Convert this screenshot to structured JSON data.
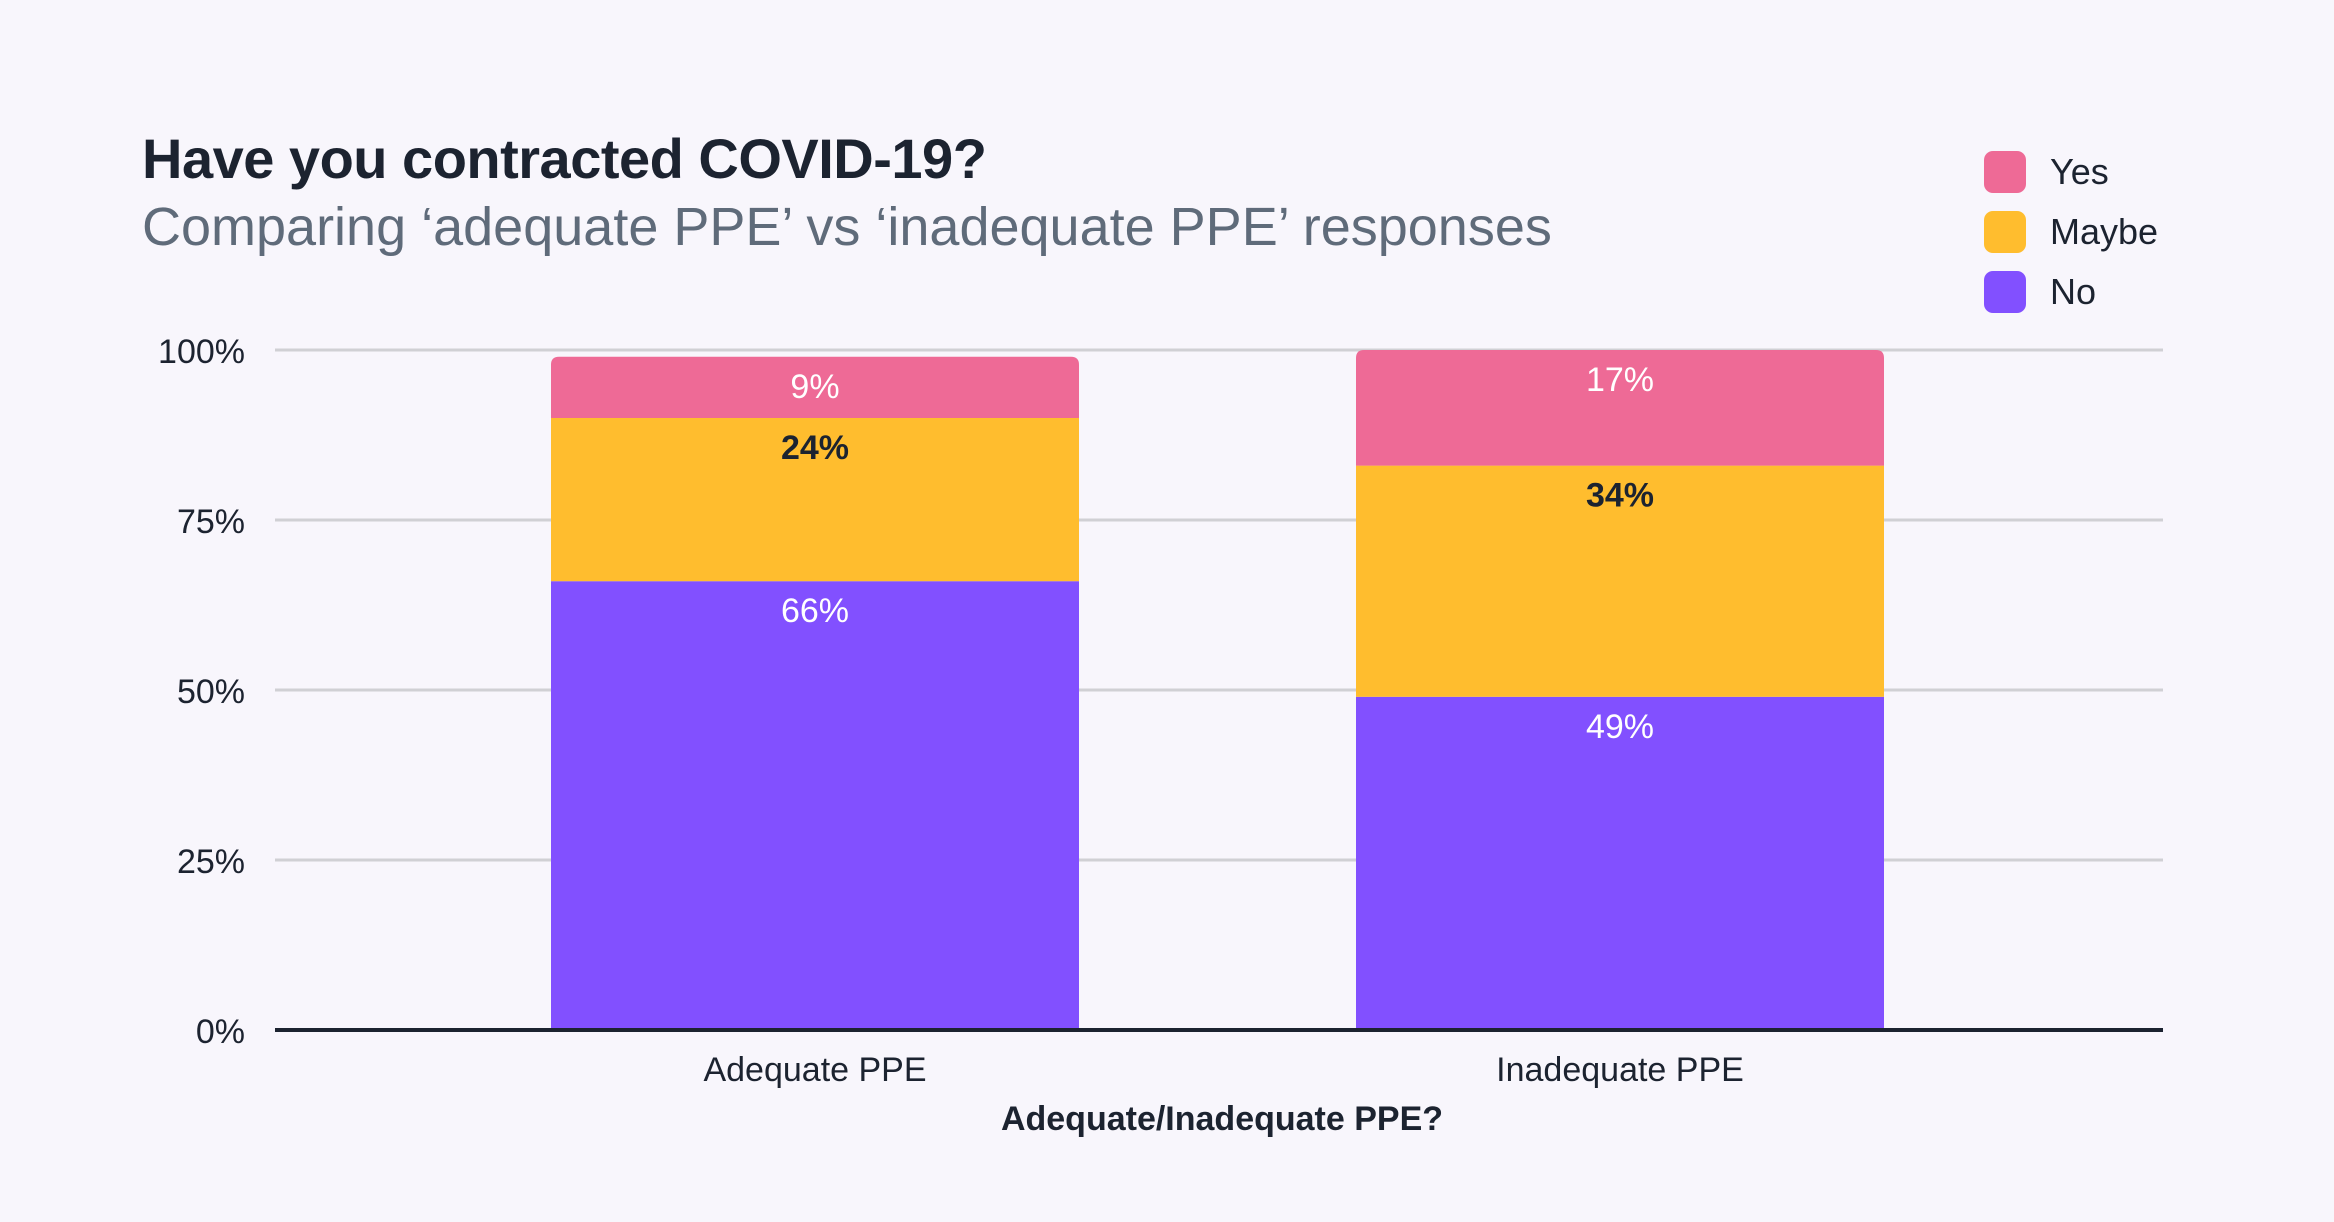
{
  "chart_data": {
    "type": "bar",
    "stacked": true,
    "title": "Have you contracted COVID-19?",
    "subtitle": "Comparing ‘adequate PPE’ vs ‘inadequate PPE’ responses",
    "xlabel": "Adequate/Inadequate PPE?",
    "ylabel": "",
    "ylim": [
      0,
      100
    ],
    "yticks": [
      "0%",
      "25%",
      "50%",
      "75%",
      "100%"
    ],
    "ytick_values": [
      0,
      25,
      50,
      75,
      100
    ],
    "grid": true,
    "legend_position": "top-right",
    "categories": [
      "Adequate PPE",
      "Inadequate PPE"
    ],
    "series": [
      {
        "name": "No",
        "color": "#8250ff",
        "values": [
          66,
          49
        ],
        "labels": [
          "66%",
          "49%"
        ],
        "label_color": "#ffffff",
        "label_weight": "normal"
      },
      {
        "name": "Maybe",
        "color": "#ffbd2e",
        "values": [
          24,
          34
        ],
        "labels": [
          "24%",
          "34%"
        ],
        "label_color": "#1c2330",
        "label_weight": "bold"
      },
      {
        "name": "Yes",
        "color": "#ee6a96",
        "values": [
          9,
          17
        ],
        "labels": [
          "9%",
          "17%"
        ],
        "label_color": "#ffffff",
        "label_weight": "normal"
      }
    ],
    "legend_order": [
      "Yes",
      "Maybe",
      "No"
    ]
  }
}
